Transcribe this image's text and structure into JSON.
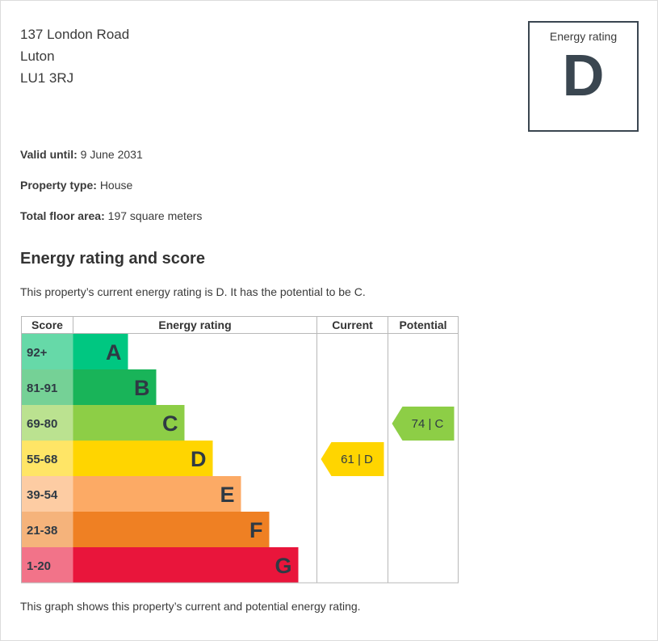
{
  "address": {
    "line1": "137 London Road",
    "line2": "Luton",
    "line3": "LU1 3RJ"
  },
  "rating_box": {
    "label": "Energy rating",
    "letter": "D"
  },
  "facts": [
    {
      "label": "Valid until:",
      "value": "9 June 2031"
    },
    {
      "label": "Property type:",
      "value": "House"
    },
    {
      "label": "Total floor area:",
      "value": "197 square meters"
    }
  ],
  "section_title": "Energy rating and score",
  "summary": "This property’s current energy rating is D. It has the potential to be C.",
  "footnote": "This graph shows this property’s current and potential energy rating.",
  "chart_data": {
    "type": "bar",
    "headers": {
      "score": "Score",
      "rating": "Energy rating",
      "current": "Current",
      "potential": "Potential"
    },
    "bands": [
      {
        "letter": "A",
        "range": "92+",
        "color": "#00c781",
        "light": "#66d9a8"
      },
      {
        "letter": "B",
        "range": "81-91",
        "color": "#19b459",
        "light": "#75d196"
      },
      {
        "letter": "C",
        "range": "69-80",
        "color": "#8dce46",
        "light": "#bbe290"
      },
      {
        "letter": "D",
        "range": "55-68",
        "color": "#ffd500",
        "light": "#ffe566"
      },
      {
        "letter": "E",
        "range": "39-54",
        "color": "#fcaa65",
        "light": "#fdcca3"
      },
      {
        "letter": "F",
        "range": "21-38",
        "color": "#ef8023",
        "light": "#f5b37b"
      },
      {
        "letter": "G",
        "range": "1-20",
        "color": "#e9153b",
        "light": "#f27389"
      }
    ],
    "current": {
      "score": 61,
      "letter": "D",
      "label": "61 | D",
      "color": "#ffd500"
    },
    "potential": {
      "score": 74,
      "letter": "C",
      "label": "74 | C",
      "color": "#8dce46"
    }
  }
}
